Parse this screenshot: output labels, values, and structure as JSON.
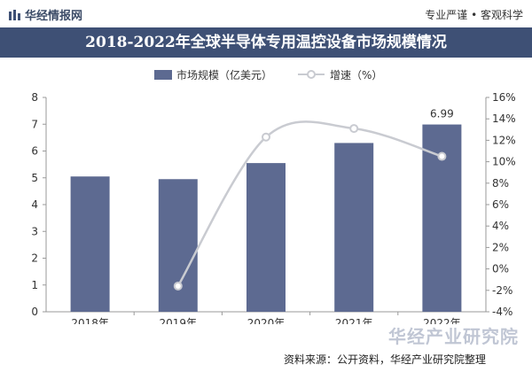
{
  "header": {
    "brand": "华经情报网",
    "slogan": "专业严谨 • 客观科学"
  },
  "title": "2018-2022年全球半导体专用温控设备市场规模情况",
  "colors": {
    "bar": "#5d6a91",
    "line": "#c9cbd1",
    "title_band": "#3e5075",
    "axis_text": "#333333"
  },
  "chart_data": {
    "type": "bar",
    "categories": [
      "2018年",
      "2019年",
      "2020年",
      "2021年",
      "2022年"
    ],
    "series": [
      {
        "name": "市场规模（亿美元）",
        "type": "bar",
        "axis": "left",
        "values": [
          5.05,
          4.95,
          5.55,
          6.3,
          6.99
        ]
      },
      {
        "name": "增速（%）",
        "type": "line",
        "axis": "right",
        "values": [
          null,
          -1.6,
          12.3,
          13.1,
          10.5
        ]
      }
    ],
    "data_labels": [
      {
        "series": 0,
        "index": 4,
        "text": "6.99"
      }
    ],
    "y_left": {
      "min": 0,
      "max": 8,
      "ticks": [
        "0",
        "1",
        "2",
        "3",
        "4",
        "5",
        "6",
        "7",
        "8"
      ]
    },
    "y_right": {
      "min": -4,
      "max": 16,
      "ticks": [
        "-4%",
        "-2%",
        "0%",
        "2%",
        "4%",
        "6%",
        "8%",
        "10%",
        "12%",
        "14%",
        "16%"
      ]
    },
    "legend_position": "top-center",
    "grid": false
  },
  "footer": {
    "watermark": "华经产业研究院",
    "source": "资料来源：公开资料，华经产业研究院整理"
  }
}
